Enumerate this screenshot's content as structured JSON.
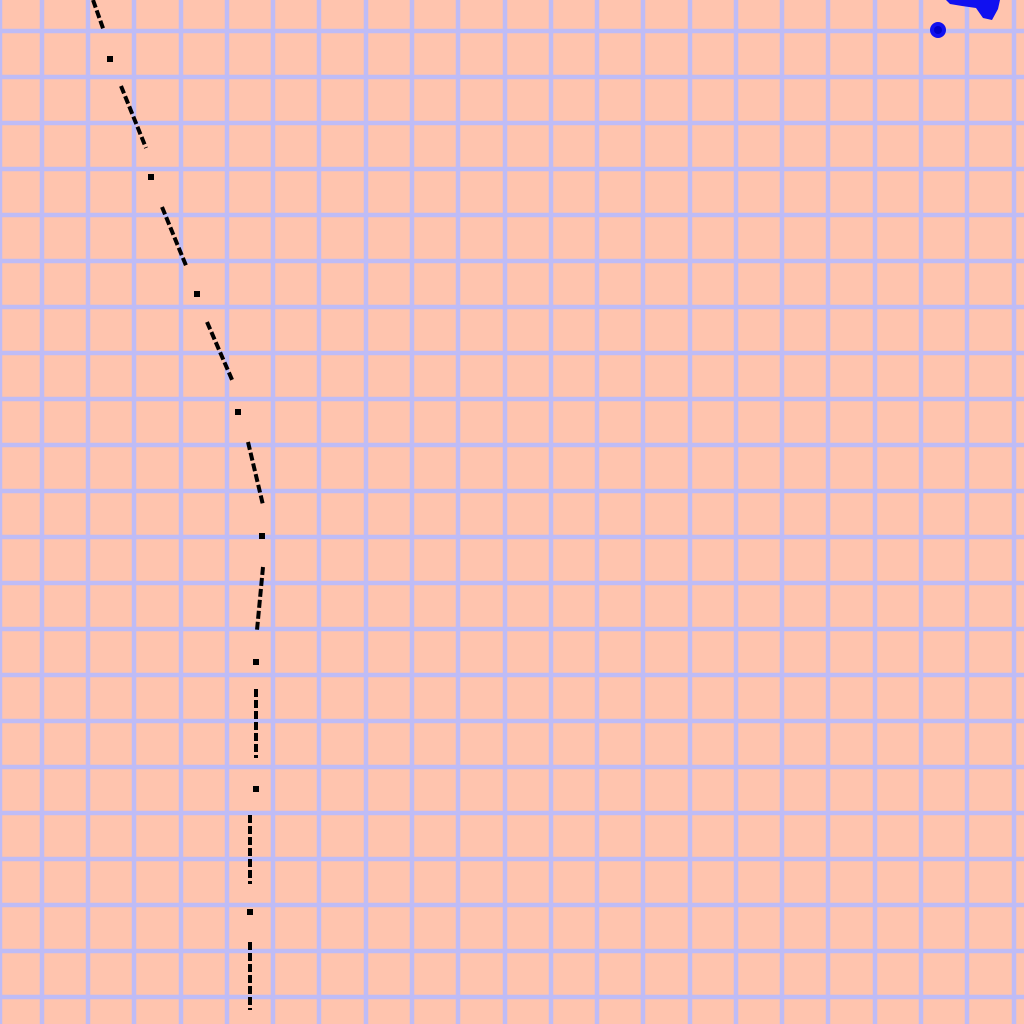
{
  "map": {
    "colors": {
      "background": "#FFC4AE",
      "grid": "#BFBCF6",
      "boundary_line": "#000000",
      "water_feature": "#1010F0",
      "water_feature_dark": "#0000C8"
    },
    "grid": {
      "present": true,
      "style": "regular square grid"
    },
    "features": [
      {
        "name": "boundary-line",
        "kind": "dash-dot line",
        "color": "#000000"
      },
      {
        "name": "water-feature",
        "kind": "small blue patch",
        "color": "#1010F0"
      }
    ]
  }
}
